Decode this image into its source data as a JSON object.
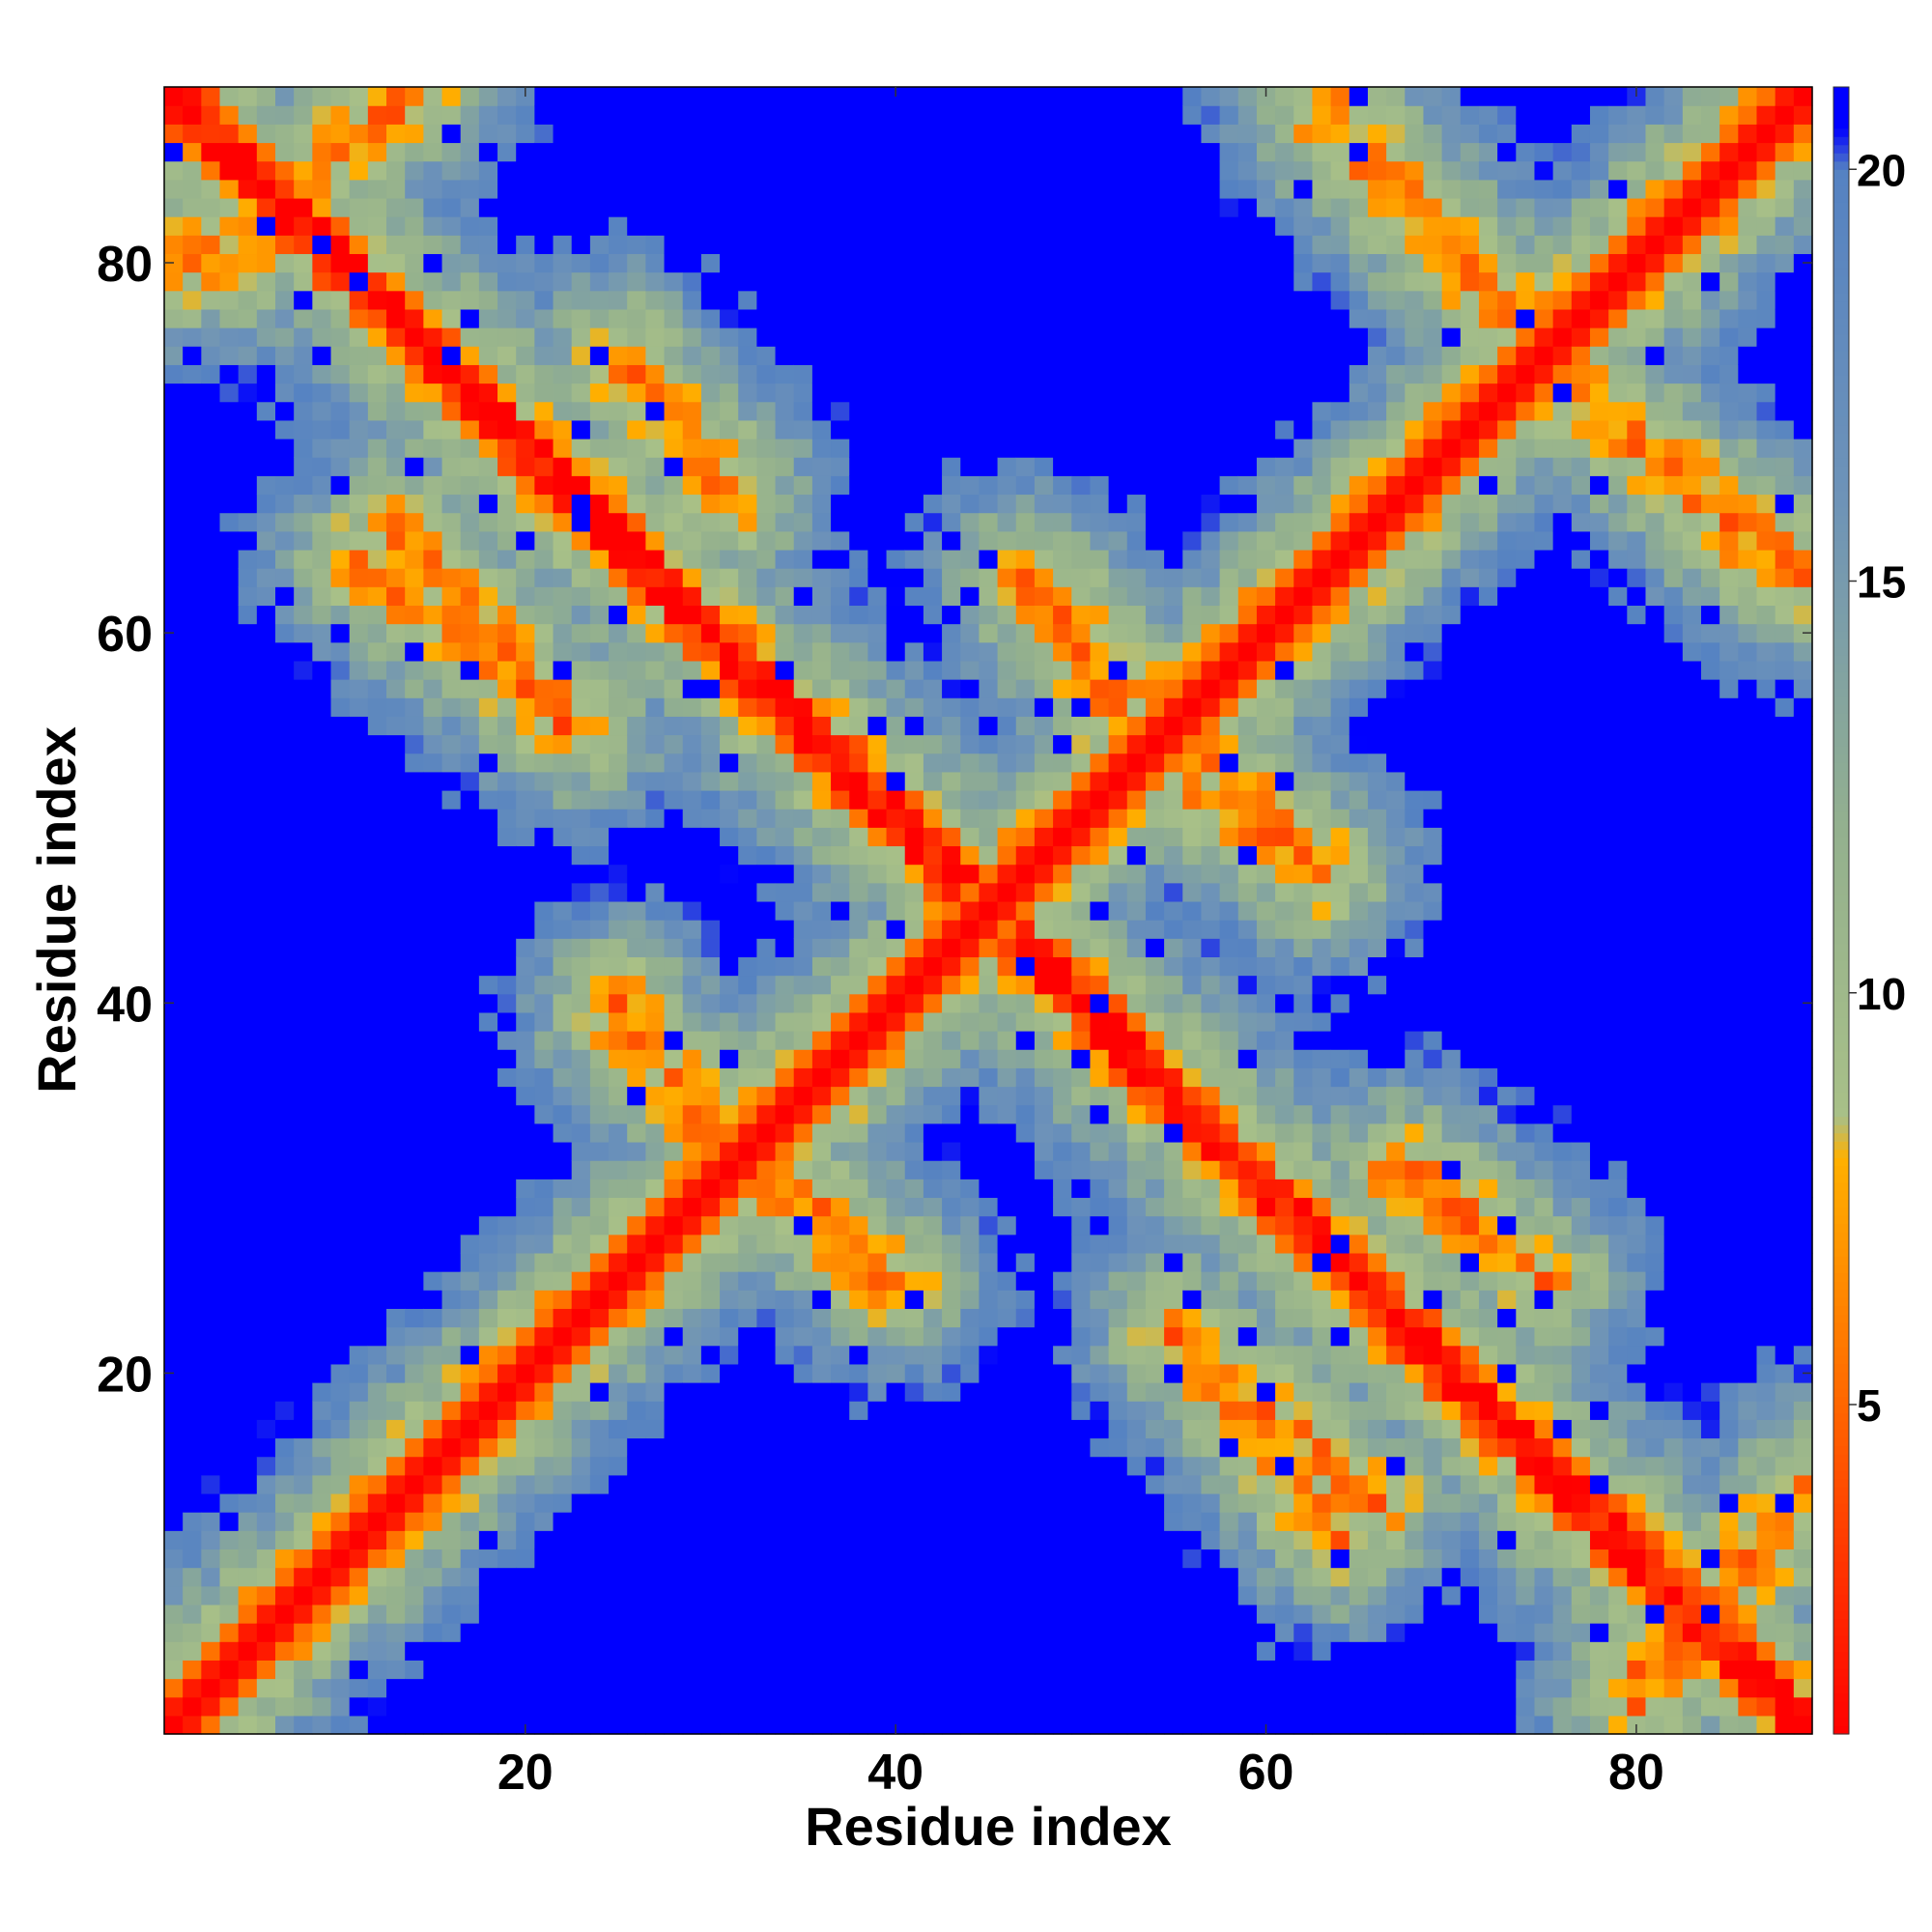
{
  "chart_data": {
    "type": "heatmap",
    "title": "",
    "xlabel": "Residue index",
    "ylabel": "Residue index",
    "n": 89,
    "xlim": [
      1,
      89
    ],
    "ylim": [
      1,
      89
    ],
    "x_ticks": [
      20,
      40,
      60,
      80
    ],
    "y_ticks": [
      20,
      40,
      60,
      80
    ],
    "colorbar": {
      "ticks": [
        5,
        10,
        15,
        20
      ],
      "range": [
        1,
        21
      ],
      "position": "right",
      "stops": [
        {
          "value": 1,
          "color": "#ff0000"
        },
        {
          "value": 5,
          "color": "#ff6600"
        },
        {
          "value": 8,
          "color": "#ffb000"
        },
        {
          "value": 8.5,
          "color": "#a8c088"
        },
        {
          "value": 12,
          "color": "#93b08e"
        },
        {
          "value": 16,
          "color": "#6e93b8"
        },
        {
          "value": 20,
          "color": "#5582c2"
        },
        {
          "value": 20.5,
          "color": "#0000ff"
        },
        {
          "value": 21,
          "color": "#0000ff"
        }
      ]
    },
    "diagonal": {
      "main": "i = j",
      "anti_diagonal": "i + j = 90"
    },
    "contact_bands": [
      {
        "from": [
          2,
          80
        ],
        "to": [
          14,
          89
        ]
      },
      {
        "from": [
          11,
          64
        ],
        "to": [
          23,
          55
        ]
      },
      {
        "from": [
          26,
          74
        ],
        "to": [
          31,
          67
        ]
      },
      {
        "from": [
          25,
          39
        ],
        "to": [
          32,
          33
        ]
      },
      {
        "from": [
          33,
          30
        ],
        "to": [
          40,
          25
        ]
      },
      {
        "from": [
          47,
          63
        ],
        "to": [
          54,
          56
        ]
      },
      {
        "from": [
          56,
          52
        ],
        "to": [
          63,
          47
        ]
      },
      {
        "from": [
          55,
          22
        ],
        "to": [
          66,
          13
        ]
      },
      {
        "from": [
          68,
          31
        ],
        "to": [
          75,
          25
        ]
      },
      {
        "from": [
          63,
          89
        ],
        "to": [
          73,
          77
        ]
      },
      {
        "from": [
          76,
          74
        ],
        "to": [
          88,
          63
        ]
      },
      {
        "from": [
          80,
          4
        ],
        "to": [
          89,
          13
        ]
      }
    ]
  }
}
